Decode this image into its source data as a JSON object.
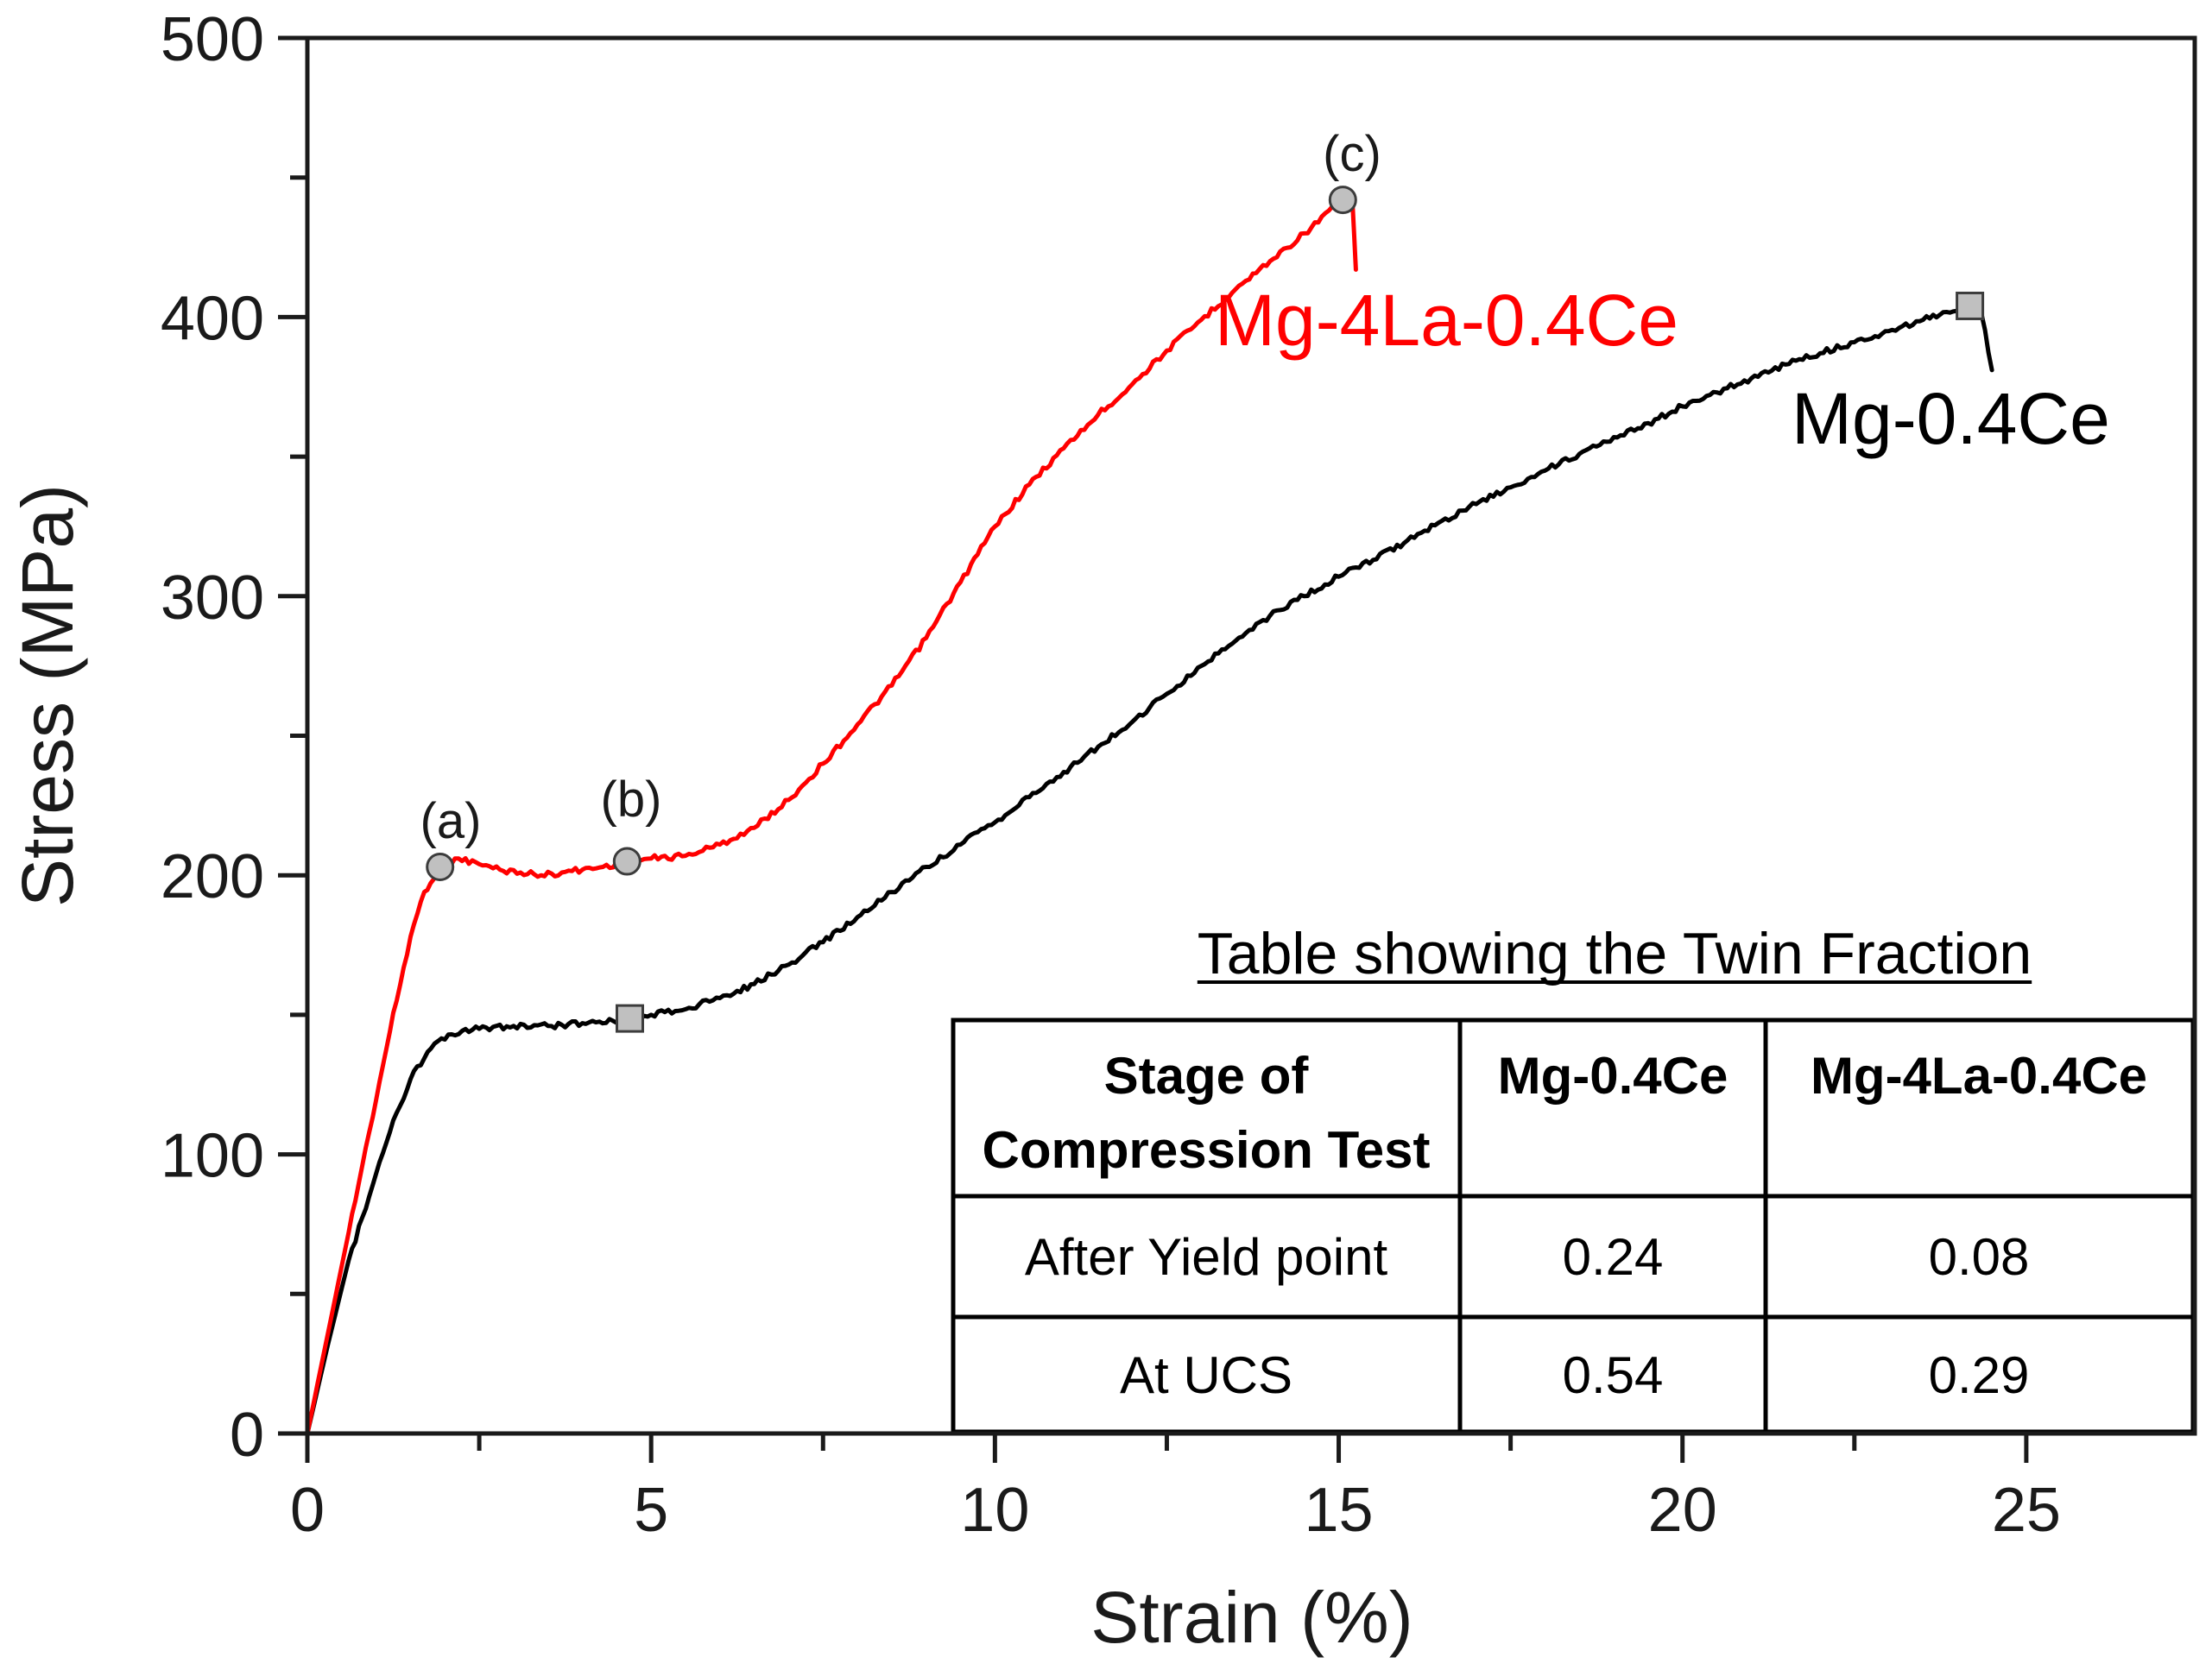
{
  "chart_data": {
    "type": "line",
    "title": "",
    "xlabel": "Strain (%)",
    "ylabel": "Stress (MPa)",
    "xlim": [
      0,
      27.45
    ],
    "ylim": [
      0,
      500
    ],
    "xticks": [
      0,
      5,
      10,
      15,
      20,
      25
    ],
    "yticks": [
      0,
      100,
      200,
      300,
      400,
      500
    ],
    "grid": false,
    "colors": {
      "axis": "#1a1a1a",
      "marker_fill": "#c0c0c0",
      "marker_edge": "#3c3c3c"
    },
    "series": [
      {
        "name": "Mg-4La-0.4Ce",
        "color": "#ff0000",
        "x": [
          0,
          0.3,
          0.6,
          0.9,
          1.2,
          1.5,
          1.7,
          1.93,
          2.2,
          2.5,
          2.8,
          3.1,
          3.4,
          3.7,
          4.0,
          4.3,
          4.65,
          5.0,
          5.5,
          6.0,
          6.5,
          7.0,
          7.5,
          8.0,
          8.5,
          9.0,
          9.5,
          10.0,
          10.5,
          11.0,
          11.5,
          12.0,
          12.5,
          13.0,
          13.5,
          14.0,
          14.5,
          15.06,
          15.2,
          15.25
        ],
        "y": [
          0,
          36,
          72,
          108,
          144,
          178,
          194,
          203,
          206,
          204,
          202,
          201,
          200,
          201,
          202,
          203,
          205,
          206,
          207,
          211,
          217,
          227,
          240,
          254,
          268,
          285,
          305,
          325,
          340,
          353,
          365,
          376,
          388,
          399,
          410,
          420,
          430,
          442,
          441,
          417
        ],
        "markers": [
          {
            "x": 1.93,
            "y": 203,
            "label": "(a)"
          },
          {
            "x": 4.65,
            "y": 205,
            "label": "(b)"
          },
          {
            "x": 15.06,
            "y": 442,
            "label": "(c)"
          }
        ]
      },
      {
        "name": "Mg-0.4Ce",
        "color": "#000000",
        "x": [
          0,
          0.3,
          0.6,
          0.9,
          1.2,
          1.5,
          1.8,
          2.1,
          2.5,
          3.0,
          3.5,
          4.0,
          4.69,
          5.0,
          5.5,
          6.0,
          6.5,
          7.0,
          7.5,
          8.0,
          8.5,
          9.0,
          9.5,
          10.0,
          10.5,
          11.0,
          11.5,
          12.0,
          12.5,
          13.0,
          13.5,
          14.0,
          14.5,
          15.0,
          15.5,
          16.0,
          16.5,
          17.0,
          17.5,
          18.0,
          18.5,
          19.0,
          19.5,
          20.0,
          20.5,
          21.0,
          21.5,
          22.0,
          22.5,
          23.0,
          23.5,
          24.18,
          24.35,
          24.5
        ],
        "y": [
          0,
          32,
          62,
          85,
          108,
          127,
          138,
          143,
          145,
          146,
          146,
          147,
          148.7,
          150,
          152,
          156,
          161,
          168,
          176,
          185,
          194,
          203,
          211,
          219,
          228,
          237,
          246,
          255,
          265,
          275,
          284,
          293,
          300,
          307,
          313,
          320,
          327,
          333,
          339,
          345,
          351,
          357,
          362,
          368,
          373,
          378,
          383,
          387,
          391,
          395,
          399,
          404,
          401,
          381
        ],
        "markers": [
          {
            "x": 4.69,
            "y": 148.7
          },
          {
            "x": 24.18,
            "y": 404
          }
        ]
      }
    ]
  },
  "table": {
    "title": "Table showing the Twin Fraction",
    "header": {
      "stage_line1": "Stage of",
      "stage_line2": "Compression Test",
      "col1": "Mg-0.4Ce",
      "col2": "Mg-4La-0.4Ce"
    },
    "rows": [
      {
        "stage": "After Yield point",
        "mg_04ce": "0.24",
        "mg_4la_04ce": "0.08"
      },
      {
        "stage": "At UCS",
        "mg_04ce": "0.54",
        "mg_4la_04ce": "0.29"
      }
    ]
  }
}
